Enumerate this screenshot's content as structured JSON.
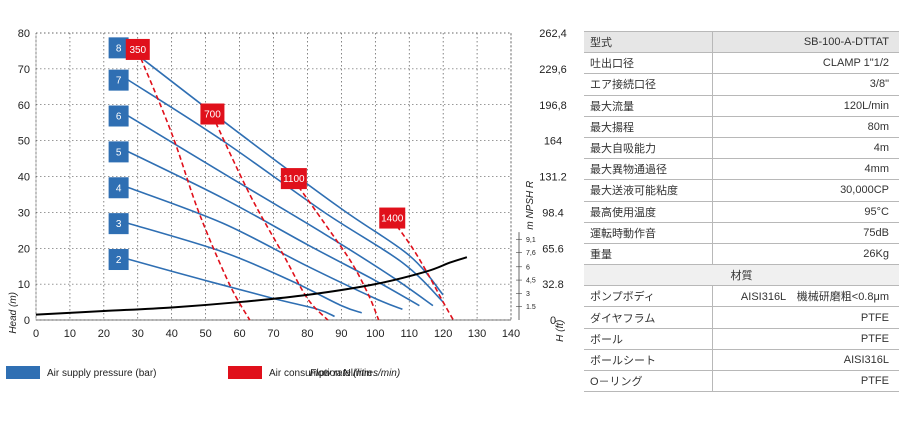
{
  "chart_data": {
    "type": "line",
    "x": [
      0,
      10,
      20,
      30,
      40,
      50,
      60,
      70,
      80,
      90,
      100,
      110,
      120,
      130,
      140
    ],
    "x_ticks": [
      "0",
      "10",
      "20",
      "30",
      "40",
      "50",
      "60",
      "70",
      "80",
      "90",
      "100",
      "110",
      "120",
      "130",
      "140"
    ],
    "y_ticks": [
      "0",
      "10",
      "20",
      "30",
      "40",
      "50",
      "60",
      "70",
      "80"
    ],
    "y2_ticks": [
      "0",
      "32.8",
      "65.6",
      "98.4",
      "131.2",
      "164",
      "196,8",
      "229,6",
      "262,4"
    ],
    "npsh_ticks": [
      "1.5",
      "3",
      "4,5",
      "6",
      "7,6",
      "9,1"
    ],
    "xlim": [
      0,
      140
    ],
    "ylim": [
      0,
      80
    ],
    "y2lim": [
      0,
      262.4
    ],
    "xlabel": "Flow rate (litres/min)",
    "ylabel": "Head (m)",
    "y2label": "H (ft)",
    "npsh_label": "m NPSH R",
    "pressure_series": [
      {
        "name": "8",
        "points": [
          [
            27,
            76
          ],
          [
            60,
            52
          ],
          [
            90,
            31
          ],
          [
            110,
            18
          ],
          [
            120,
            7
          ]
        ]
      },
      {
        "name": "7",
        "points": [
          [
            27,
            67
          ],
          [
            55,
            50
          ],
          [
            85,
            30
          ],
          [
            108,
            16
          ],
          [
            120,
            5
          ]
        ]
      },
      {
        "name": "6",
        "points": [
          [
            27,
            57
          ],
          [
            55,
            41
          ],
          [
            85,
            24
          ],
          [
            105,
            12
          ],
          [
            117,
            4
          ]
        ]
      },
      {
        "name": "5",
        "points": [
          [
            27,
            47
          ],
          [
            55,
            34
          ],
          [
            80,
            21
          ],
          [
            100,
            11
          ],
          [
            113,
            4
          ]
        ]
      },
      {
        "name": "4",
        "points": [
          [
            27,
            37
          ],
          [
            55,
            27
          ],
          [
            80,
            15
          ],
          [
            100,
            6
          ],
          [
            108,
            3
          ]
        ]
      },
      {
        "name": "3",
        "points": [
          [
            27,
            27
          ],
          [
            55,
            19
          ],
          [
            75,
            11
          ],
          [
            90,
            4
          ],
          [
            96,
            2
          ]
        ]
      },
      {
        "name": "2",
        "points": [
          [
            27,
            17
          ],
          [
            50,
            11
          ],
          [
            70,
            6
          ],
          [
            83,
            3
          ],
          [
            88,
            1
          ]
        ]
      }
    ],
    "air_series": [
      {
        "name": "350",
        "points": [
          [
            30,
            75
          ],
          [
            40,
            52
          ],
          [
            48,
            30
          ],
          [
            57,
            10
          ],
          [
            63,
            0
          ]
        ]
      },
      {
        "name": "700",
        "points": [
          [
            52,
            57
          ],
          [
            63,
            35
          ],
          [
            73,
            18
          ],
          [
            80,
            6
          ],
          [
            86,
            0
          ]
        ]
      },
      {
        "name": "1100",
        "points": [
          [
            76,
            39
          ],
          [
            85,
            27
          ],
          [
            93,
            16
          ],
          [
            98,
            7
          ],
          [
            101,
            0
          ]
        ]
      },
      {
        "name": "1400",
        "points": [
          [
            105,
            28
          ],
          [
            111,
            20
          ],
          [
            116,
            12
          ],
          [
            120,
            5
          ],
          [
            123,
            0
          ]
        ]
      }
    ],
    "npsh_curve": [
      [
        0,
        1.5
      ],
      [
        20,
        2.5
      ],
      [
        40,
        3.5
      ],
      [
        60,
        5.0
      ],
      [
        80,
        7.0
      ],
      [
        100,
        10.0
      ],
      [
        115,
        13.5
      ],
      [
        122,
        16.0
      ],
      [
        127,
        17.5
      ]
    ],
    "legend": [
      {
        "label": "Air supply pressure (bar)",
        "color": "#2f6fb3"
      },
      {
        "label": "Air consumption Nl/min",
        "color": "#e0101b"
      }
    ],
    "colors": {
      "pressure": "#2f6fb3",
      "air": "#e0101b",
      "npsh": "#000000",
      "grid": "#333333"
    }
  },
  "spec_table": {
    "header": {
      "label": "型式",
      "value": "SB-100-A-DTTAT"
    },
    "rows": [
      {
        "label": "吐出口径",
        "value": "CLAMP 1\"1/2"
      },
      {
        "label": "エア接続口径",
        "value": "3/8\""
      },
      {
        "label": "最大流量",
        "value": "120L/min"
      },
      {
        "label": "最大揚程",
        "value": "80m"
      },
      {
        "label": "最大自吸能力",
        "value": "4m"
      },
      {
        "label": "最大異物通過径",
        "value": "4mm"
      },
      {
        "label": "最大送液可能粘度",
        "value": "30,000CP"
      },
      {
        "label": "最高使用温度",
        "value": "95°C"
      },
      {
        "label": "運転時動作音",
        "value": "75dB"
      },
      {
        "label": "重量",
        "value": "26Kg"
      }
    ],
    "section_title": "材質",
    "material_rows": [
      {
        "label": "ポンプボディ",
        "value": "AISI316L　機械研磨粗<0.8μm"
      },
      {
        "label": "ダイヤフラム",
        "value": "PTFE"
      },
      {
        "label": "ボール",
        "value": "PTFE"
      },
      {
        "label": "ボールシート",
        "value": "AISI316L"
      },
      {
        "label": "O－リング",
        "value": "PTFE"
      }
    ]
  }
}
